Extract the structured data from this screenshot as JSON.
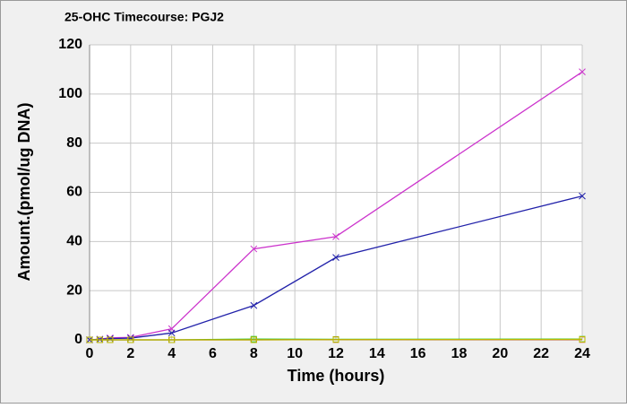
{
  "chart_data": {
    "type": "line",
    "title": "25-OHC Timecourse: PGJ2",
    "xlabel": "Time (hours)",
    "ylabel": "Amount.(pmol/ug DNA)",
    "x": [
      0,
      0.5,
      1,
      2,
      4,
      8,
      12,
      24
    ],
    "series": [
      {
        "name": "magenta",
        "color": "#cc33cc",
        "marker": "x",
        "values": [
          0,
          0.3,
          0.8,
          1,
          4.5,
          37,
          42,
          109
        ]
      },
      {
        "name": "blue",
        "color": "#2222aa",
        "marker": "x",
        "values": [
          0,
          0.2,
          0.5,
          0.7,
          2.8,
          14,
          33.5,
          58.5
        ]
      },
      {
        "name": "green",
        "color": "#33cc33",
        "marker": "square",
        "values": [
          0,
          0,
          0,
          0,
          0,
          0.3,
          0.2,
          0.3
        ]
      },
      {
        "name": "red",
        "color": "#cc3333",
        "marker": "square",
        "values": [
          0,
          0,
          0,
          0,
          0,
          0,
          0.1,
          0.1
        ]
      },
      {
        "name": "yellow",
        "color": "#bbbb00",
        "marker": "square",
        "values": [
          0,
          0,
          0,
          0,
          0,
          0,
          0.1,
          0.2
        ]
      }
    ],
    "xlim": [
      0,
      24
    ],
    "xticks": [
      0,
      2,
      4,
      6,
      8,
      10,
      12,
      14,
      16,
      18,
      20,
      22,
      24
    ],
    "ylim": [
      0,
      120
    ],
    "yticks": [
      0,
      20,
      40,
      60,
      80,
      100,
      120
    ],
    "grid": true
  }
}
